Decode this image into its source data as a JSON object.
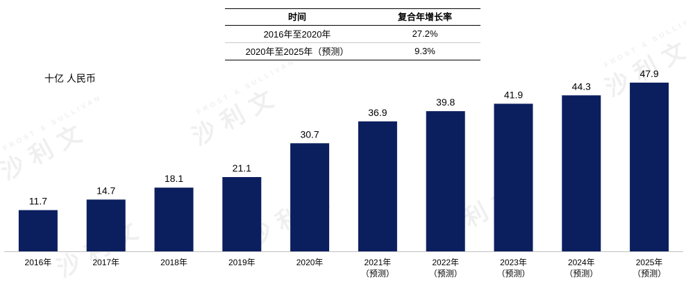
{
  "cagr_table": {
    "headers": [
      "时间",
      "复合年增长率"
    ],
    "rows": [
      [
        "2016年至2020年",
        "27.2%"
      ],
      [
        "2020年至2025年（预测）",
        "9.3%"
      ]
    ]
  },
  "watermark": {
    "text_cn": "沙利文",
    "text_en": "FROST & SULLIVAN"
  },
  "colors": {
    "bar": "#0b1f5f",
    "axis": "#bfbfbf"
  },
  "chart_data": {
    "type": "bar",
    "unit_label": "十亿 人民币",
    "categories": [
      "2016年",
      "2017年",
      "2018年",
      "2019年",
      "2020年",
      "2021年",
      "2022年",
      "2023年",
      "2024年",
      "2025年"
    ],
    "sublabels": [
      "",
      "",
      "",
      "",
      "",
      "（预测）",
      "（预测）",
      "（预测）",
      "（预测）",
      "（预测）"
    ],
    "values": [
      11.7,
      14.7,
      18.1,
      21.1,
      30.7,
      36.9,
      39.8,
      41.9,
      44.3,
      47.9
    ],
    "value_labels": [
      "11.7",
      "14.7",
      "18.1",
      "21.1",
      "30.7",
      "36.9",
      "39.8",
      "41.9",
      "44.3",
      "47.9"
    ],
    "ylim": [
      0,
      47.9
    ],
    "grid": false,
    "legend": "none"
  }
}
